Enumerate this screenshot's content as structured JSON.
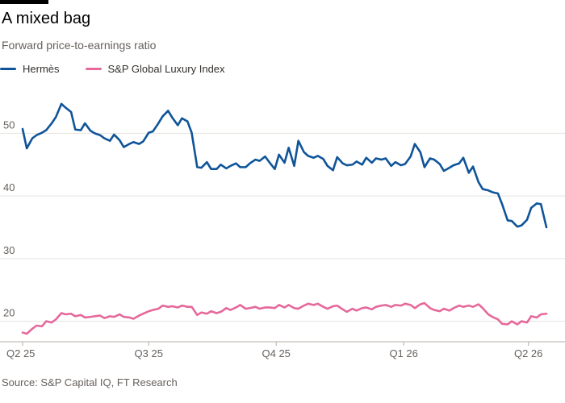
{
  "title": "A mixed bag",
  "subtitle": "Forward price-to-earnings ratio",
  "source": "Source: S&P Capital IQ, FT Research",
  "colors": {
    "hermes": "#0f5499",
    "luxury": "#e5699b",
    "grid": "#e6e2df"
  },
  "chart_data": {
    "type": "line",
    "title": "A mixed bag",
    "subtitle": "Forward price-to-earnings ratio",
    "xlabel": "",
    "ylabel": "",
    "x_start": "2025-04-01",
    "x_end": "2026-04-14",
    "x_ticks": [
      {
        "label": "Q2 25",
        "date": "2025-04-01"
      },
      {
        "label": "Q3 25",
        "date": "2025-07-01"
      },
      {
        "label": "Q4 25",
        "date": "2025-10-01"
      },
      {
        "label": "Q1 26",
        "date": "2026-01-01"
      },
      {
        "label": "Q2 26",
        "date": "2026-04-01"
      }
    ],
    "y_ticks": [
      20,
      30,
      40,
      50
    ],
    "ylim": [
      17.5,
      57
    ],
    "grid": true,
    "legend": "top-left",
    "series": [
      {
        "name": "Hermès",
        "x": [
          "2025-04-01",
          "2025-04-04",
          "2025-04-08",
          "2025-04-11",
          "2025-04-15",
          "2025-04-18",
          "2025-04-22",
          "2025-04-25",
          "2025-04-29",
          "2025-05-02",
          "2025-05-06",
          "2025-05-09",
          "2025-05-13",
          "2025-05-16",
          "2025-05-20",
          "2025-05-23",
          "2025-05-27",
          "2025-05-30",
          "2025-06-03",
          "2025-06-06",
          "2025-06-10",
          "2025-06-13",
          "2025-06-17",
          "2025-06-20",
          "2025-06-24",
          "2025-06-27",
          "2025-07-01",
          "2025-07-04",
          "2025-07-08",
          "2025-07-11",
          "2025-07-15",
          "2025-07-18",
          "2025-07-22",
          "2025-07-25",
          "2025-07-29",
          "2025-08-01",
          "2025-08-05",
          "2025-08-08",
          "2025-08-12",
          "2025-08-15",
          "2025-08-19",
          "2025-08-22",
          "2025-08-26",
          "2025-08-29",
          "2025-09-02",
          "2025-09-05",
          "2025-09-09",
          "2025-09-12",
          "2025-09-16",
          "2025-09-19",
          "2025-09-23",
          "2025-09-26",
          "2025-09-30",
          "2025-10-03",
          "2025-10-07",
          "2025-10-10",
          "2025-10-14",
          "2025-10-17",
          "2025-10-21",
          "2025-10-24",
          "2025-10-28",
          "2025-10-31",
          "2025-11-04",
          "2025-11-07",
          "2025-11-11",
          "2025-11-14",
          "2025-11-18",
          "2025-11-21",
          "2025-11-25",
          "2025-11-28",
          "2025-12-02",
          "2025-12-05",
          "2025-12-09",
          "2025-12-12",
          "2025-12-16",
          "2025-12-19",
          "2025-12-23",
          "2025-12-26",
          "2025-12-30",
          "2026-01-02",
          "2026-01-06",
          "2026-01-09",
          "2026-01-13",
          "2026-01-16",
          "2026-01-20",
          "2026-01-23",
          "2026-01-27",
          "2026-01-30",
          "2026-02-03",
          "2026-02-06",
          "2026-02-10",
          "2026-02-13",
          "2026-02-17",
          "2026-02-20",
          "2026-02-24",
          "2026-02-27",
          "2026-03-03",
          "2026-03-06",
          "2026-03-10",
          "2026-03-13",
          "2026-03-17",
          "2026-03-20",
          "2026-03-24",
          "2026-03-27",
          "2026-03-31",
          "2026-04-03",
          "2026-04-07",
          "2026-04-10",
          "2026-04-14"
        ],
        "values": [
          50.7,
          47.6,
          49.2,
          49.7,
          50.1,
          50.5,
          51.6,
          52.6,
          54.7,
          54.1,
          53.4,
          50.6,
          50.5,
          51.6,
          50.4,
          50.0,
          49.7,
          49.2,
          48.8,
          49.8,
          48.9,
          47.8,
          48.3,
          48.6,
          48.3,
          48.7,
          50.1,
          50.3,
          51.6,
          52.7,
          53.6,
          52.5,
          51.3,
          52.4,
          51.9,
          50.1,
          44.6,
          44.5,
          45.4,
          44.3,
          44.3,
          45.0,
          44.4,
          44.8,
          45.2,
          44.6,
          44.6,
          45.2,
          45.8,
          45.6,
          46.3,
          45.4,
          44.3,
          46.6,
          45.3,
          47.7,
          44.8,
          48.8,
          47.0,
          46.4,
          46.1,
          46.4,
          45.9,
          44.8,
          44.1,
          46.2,
          45.2,
          44.9,
          45.0,
          45.5,
          45.0,
          46.1,
          45.3,
          46.0,
          45.8,
          46.0,
          44.8,
          45.4,
          44.9,
          45.1,
          46.3,
          48.3,
          47.0,
          44.6,
          46.0,
          45.8,
          45.1,
          44.0,
          44.5,
          44.9,
          45.2,
          46.1,
          43.7,
          44.7,
          42.2,
          41.1,
          40.9,
          40.6,
          40.4,
          38.7,
          36.1,
          36.0,
          35.1,
          35.3,
          36.2,
          38.1,
          38.8,
          38.7,
          35.0
        ]
      },
      {
        "name": "S&P Global Luxury Index",
        "x": [
          "2025-04-01",
          "2025-04-04",
          "2025-04-08",
          "2025-04-11",
          "2025-04-15",
          "2025-04-18",
          "2025-04-22",
          "2025-04-25",
          "2025-04-29",
          "2025-05-02",
          "2025-05-06",
          "2025-05-09",
          "2025-05-13",
          "2025-05-16",
          "2025-05-20",
          "2025-05-23",
          "2025-05-27",
          "2025-05-30",
          "2025-06-03",
          "2025-06-06",
          "2025-06-10",
          "2025-06-13",
          "2025-06-17",
          "2025-06-20",
          "2025-06-24",
          "2025-06-27",
          "2025-07-01",
          "2025-07-04",
          "2025-07-08",
          "2025-07-11",
          "2025-07-15",
          "2025-07-18",
          "2025-07-22",
          "2025-07-25",
          "2025-07-29",
          "2025-08-01",
          "2025-08-05",
          "2025-08-08",
          "2025-08-12",
          "2025-08-15",
          "2025-08-19",
          "2025-08-22",
          "2025-08-26",
          "2025-08-29",
          "2025-09-02",
          "2025-09-05",
          "2025-09-09",
          "2025-09-12",
          "2025-09-16",
          "2025-09-19",
          "2025-09-23",
          "2025-09-26",
          "2025-09-30",
          "2025-10-03",
          "2025-10-07",
          "2025-10-10",
          "2025-10-14",
          "2025-10-17",
          "2025-10-21",
          "2025-10-24",
          "2025-10-28",
          "2025-10-31",
          "2025-11-04",
          "2025-11-07",
          "2025-11-11",
          "2025-11-14",
          "2025-11-18",
          "2025-11-21",
          "2025-11-25",
          "2025-11-28",
          "2025-12-02",
          "2025-12-05",
          "2025-12-09",
          "2025-12-12",
          "2025-12-16",
          "2025-12-19",
          "2025-12-23",
          "2025-12-26",
          "2025-12-30",
          "2026-01-02",
          "2026-01-06",
          "2026-01-09",
          "2026-01-13",
          "2026-01-16",
          "2026-01-20",
          "2026-01-23",
          "2026-01-27",
          "2026-01-30",
          "2026-02-03",
          "2026-02-06",
          "2026-02-10",
          "2026-02-13",
          "2026-02-17",
          "2026-02-20",
          "2026-02-24",
          "2026-02-27",
          "2026-03-03",
          "2026-03-06",
          "2026-03-10",
          "2026-03-13",
          "2026-03-17",
          "2026-03-20",
          "2026-03-24",
          "2026-03-27",
          "2026-03-31",
          "2026-04-03",
          "2026-04-07",
          "2026-04-10",
          "2026-04-14"
        ],
        "values": [
          18.2,
          18.0,
          18.8,
          19.3,
          19.2,
          20.0,
          19.8,
          20.3,
          21.3,
          21.1,
          21.2,
          20.8,
          21.0,
          20.6,
          20.7,
          20.8,
          20.9,
          20.5,
          20.8,
          20.7,
          21.1,
          20.7,
          20.6,
          20.4,
          20.9,
          21.2,
          21.6,
          21.8,
          22.0,
          22.5,
          22.3,
          22.4,
          22.2,
          22.5,
          22.3,
          22.3,
          21.0,
          21.4,
          21.2,
          21.6,
          21.3,
          21.5,
          22.1,
          21.8,
          22.2,
          22.6,
          22.0,
          22.1,
          22.3,
          22.0,
          22.2,
          22.2,
          22.1,
          22.6,
          22.2,
          22.6,
          22.1,
          22.0,
          22.5,
          22.8,
          22.6,
          22.8,
          22.3,
          22.0,
          22.4,
          22.5,
          21.9,
          21.5,
          22.0,
          21.7,
          22.1,
          22.2,
          21.9,
          22.3,
          22.5,
          22.6,
          22.3,
          22.6,
          22.5,
          22.8,
          22.6,
          22.1,
          22.7,
          22.9,
          22.1,
          21.8,
          21.6,
          22.0,
          21.7,
          22.1,
          22.5,
          22.3,
          22.5,
          22.3,
          22.7,
          22.1,
          21.1,
          20.7,
          20.3,
          19.6,
          19.5,
          20.0,
          19.5,
          20.0,
          19.8,
          20.8,
          20.6,
          21.1,
          21.2
        ]
      }
    ]
  }
}
